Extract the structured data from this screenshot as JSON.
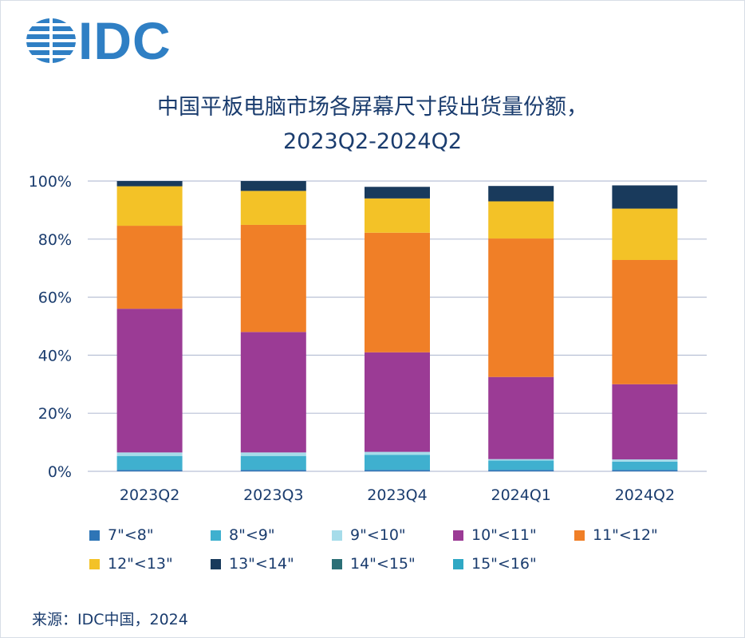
{
  "header": {
    "logo_text": "IDC"
  },
  "chart_data": {
    "type": "bar",
    "stacked": true,
    "title": "中国平板电脑市场各屏幕尺寸段出货量份额，",
    "subtitle": "2023Q2-2024Q2",
    "categories": [
      "2023Q2",
      "2023Q3",
      "2023Q4",
      "2024Q1",
      "2024Q2"
    ],
    "ylim": [
      0,
      100
    ],
    "yticks": [
      "0%",
      "20%",
      "40%",
      "60%",
      "80%",
      "100%"
    ],
    "grid": true,
    "legend_position": "bottom",
    "series": [
      {
        "name": "7\"<8\"",
        "color": "#2e75b6",
        "values": [
          0.5,
          0.5,
          0.5,
          0.5,
          0.5
        ]
      },
      {
        "name": "8\"<9\"",
        "color": "#3fb0cf",
        "values": [
          4.8,
          4.8,
          5.2,
          3.2,
          2.8
        ]
      },
      {
        "name": "9\"<10\"",
        "color": "#a6dcea",
        "values": [
          1.2,
          1.2,
          1.0,
          0.5,
          0.8
        ]
      },
      {
        "name": "10\"<11\"",
        "color": "#9b3b95",
        "values": [
          49.5,
          41.5,
          34.3,
          28.3,
          25.9
        ]
      },
      {
        "name": "11\"<12\"",
        "color": "#f07f27",
        "values": [
          28.6,
          36.9,
          41.2,
          47.7,
          42.8
        ]
      },
      {
        "name": "12\"<13\"",
        "color": "#f3c227",
        "values": [
          13.6,
          11.7,
          11.8,
          12.8,
          17.7
        ]
      },
      {
        "name": "13\"<14\"",
        "color": "#193a5c",
        "values": [
          1.8,
          3.4,
          4.0,
          5.3,
          8.0
        ]
      },
      {
        "name": "14\"<15\"",
        "color": "#2b6f76",
        "values": [
          0,
          0,
          0,
          0,
          0
        ]
      },
      {
        "name": "15\"<16\"",
        "color": "#2fa8c4",
        "values": [
          0,
          0,
          0,
          0,
          0
        ]
      }
    ],
    "colors": {
      "axis_text": "#1a3c6e",
      "grid": "#b9c1d6"
    }
  },
  "footer": {
    "source": "来源：IDC中国，2024"
  }
}
